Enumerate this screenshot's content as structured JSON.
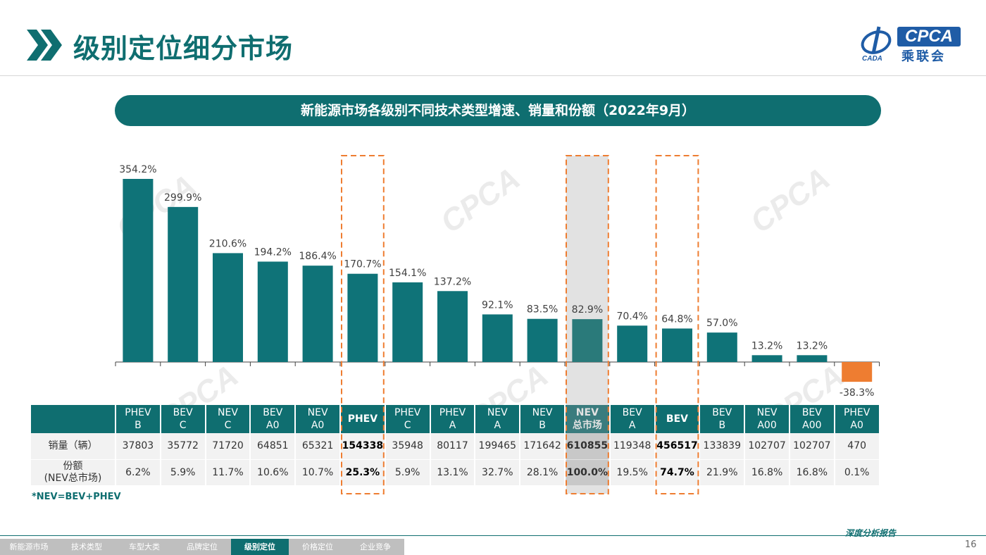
{
  "header": {
    "title": "级别定位细分市场",
    "logo_text": "CPCA",
    "logo_cn": "乘联会",
    "logo_sub": "CADA"
  },
  "banner": "新能源市场各级别不同技术类型增速、销量和份额（2022年9月）",
  "watermark": "CPCA",
  "colors": {
    "primary": "#0f6e70",
    "bar": "#0f7378",
    "negative": "#ee7d31",
    "highlight_box": "#ee7d31"
  },
  "chart_data": {
    "type": "bar",
    "categories": [
      "PHEV B",
      "BEV C",
      "NEV C",
      "BEV A0",
      "NEV A0",
      "PHEV",
      "PHEV C",
      "PHEV A",
      "NEV A",
      "NEV B",
      "NEV 总市场",
      "BEV A",
      "BEV",
      "BEV B",
      "NEV A00",
      "BEV A00",
      "PHEV A0"
    ],
    "values": [
      354.2,
      299.9,
      210.6,
      194.2,
      186.4,
      170.7,
      154.1,
      137.2,
      92.1,
      83.5,
      82.9,
      70.4,
      64.8,
      57.0,
      13.2,
      13.2,
      -38.3
    ],
    "value_labels": [
      "354.2%",
      "299.9%",
      "210.6%",
      "194.2%",
      "186.4%",
      "170.7%",
      "154.1%",
      "137.2%",
      "92.1%",
      "83.5%",
      "82.9%",
      "70.4%",
      "64.8%",
      "57.0%",
      "13.2%",
      "13.2%",
      "-38.3%"
    ],
    "unit": "%",
    "highlighted": [
      "PHEV",
      "NEV 总市场",
      "BEV"
    ]
  },
  "table": {
    "headers": [
      [
        "PHEV",
        "B"
      ],
      [
        "BEV",
        "C"
      ],
      [
        "NEV",
        "C"
      ],
      [
        "BEV",
        "A0"
      ],
      [
        "NEV",
        "A0"
      ],
      [
        "PHEV"
      ],
      [
        "PHEV",
        "C"
      ],
      [
        "PHEV",
        "A"
      ],
      [
        "NEV",
        "A"
      ],
      [
        "NEV",
        "B"
      ],
      [
        "NEV",
        "总市场"
      ],
      [
        "BEV",
        "A"
      ],
      [
        "BEV"
      ],
      [
        "BEV",
        "B"
      ],
      [
        "NEV",
        "A00"
      ],
      [
        "BEV",
        "A00"
      ],
      [
        "PHEV",
        "A0"
      ]
    ],
    "sales_label": "销量（辆）",
    "sales": [
      "37803",
      "35772",
      "71720",
      "64851",
      "65321",
      "154338",
      "35948",
      "80117",
      "199465",
      "171642",
      "610855",
      "119348",
      "456517",
      "133839",
      "102707",
      "102707",
      "470"
    ],
    "share_label_1": "份额",
    "share_label_2": "(NEV总市场)",
    "shares": [
      "6.2%",
      "5.9%",
      "11.7%",
      "10.6%",
      "10.7%",
      "25.3%",
      "5.9%",
      "13.1%",
      "32.7%",
      "28.1%",
      "100.0%",
      "19.5%",
      "74.7%",
      "21.9%",
      "16.8%",
      "16.8%",
      "0.1%"
    ]
  },
  "note": "*NEV=BEV+PHEV",
  "footer": {
    "nav": [
      "新能源市场",
      "技术类型",
      "车型大类",
      "品牌定位",
      "级别定位",
      "价格定位",
      "企业竞争"
    ],
    "active_index": 4,
    "report_label": "深度分析报告",
    "page_number": "16"
  }
}
